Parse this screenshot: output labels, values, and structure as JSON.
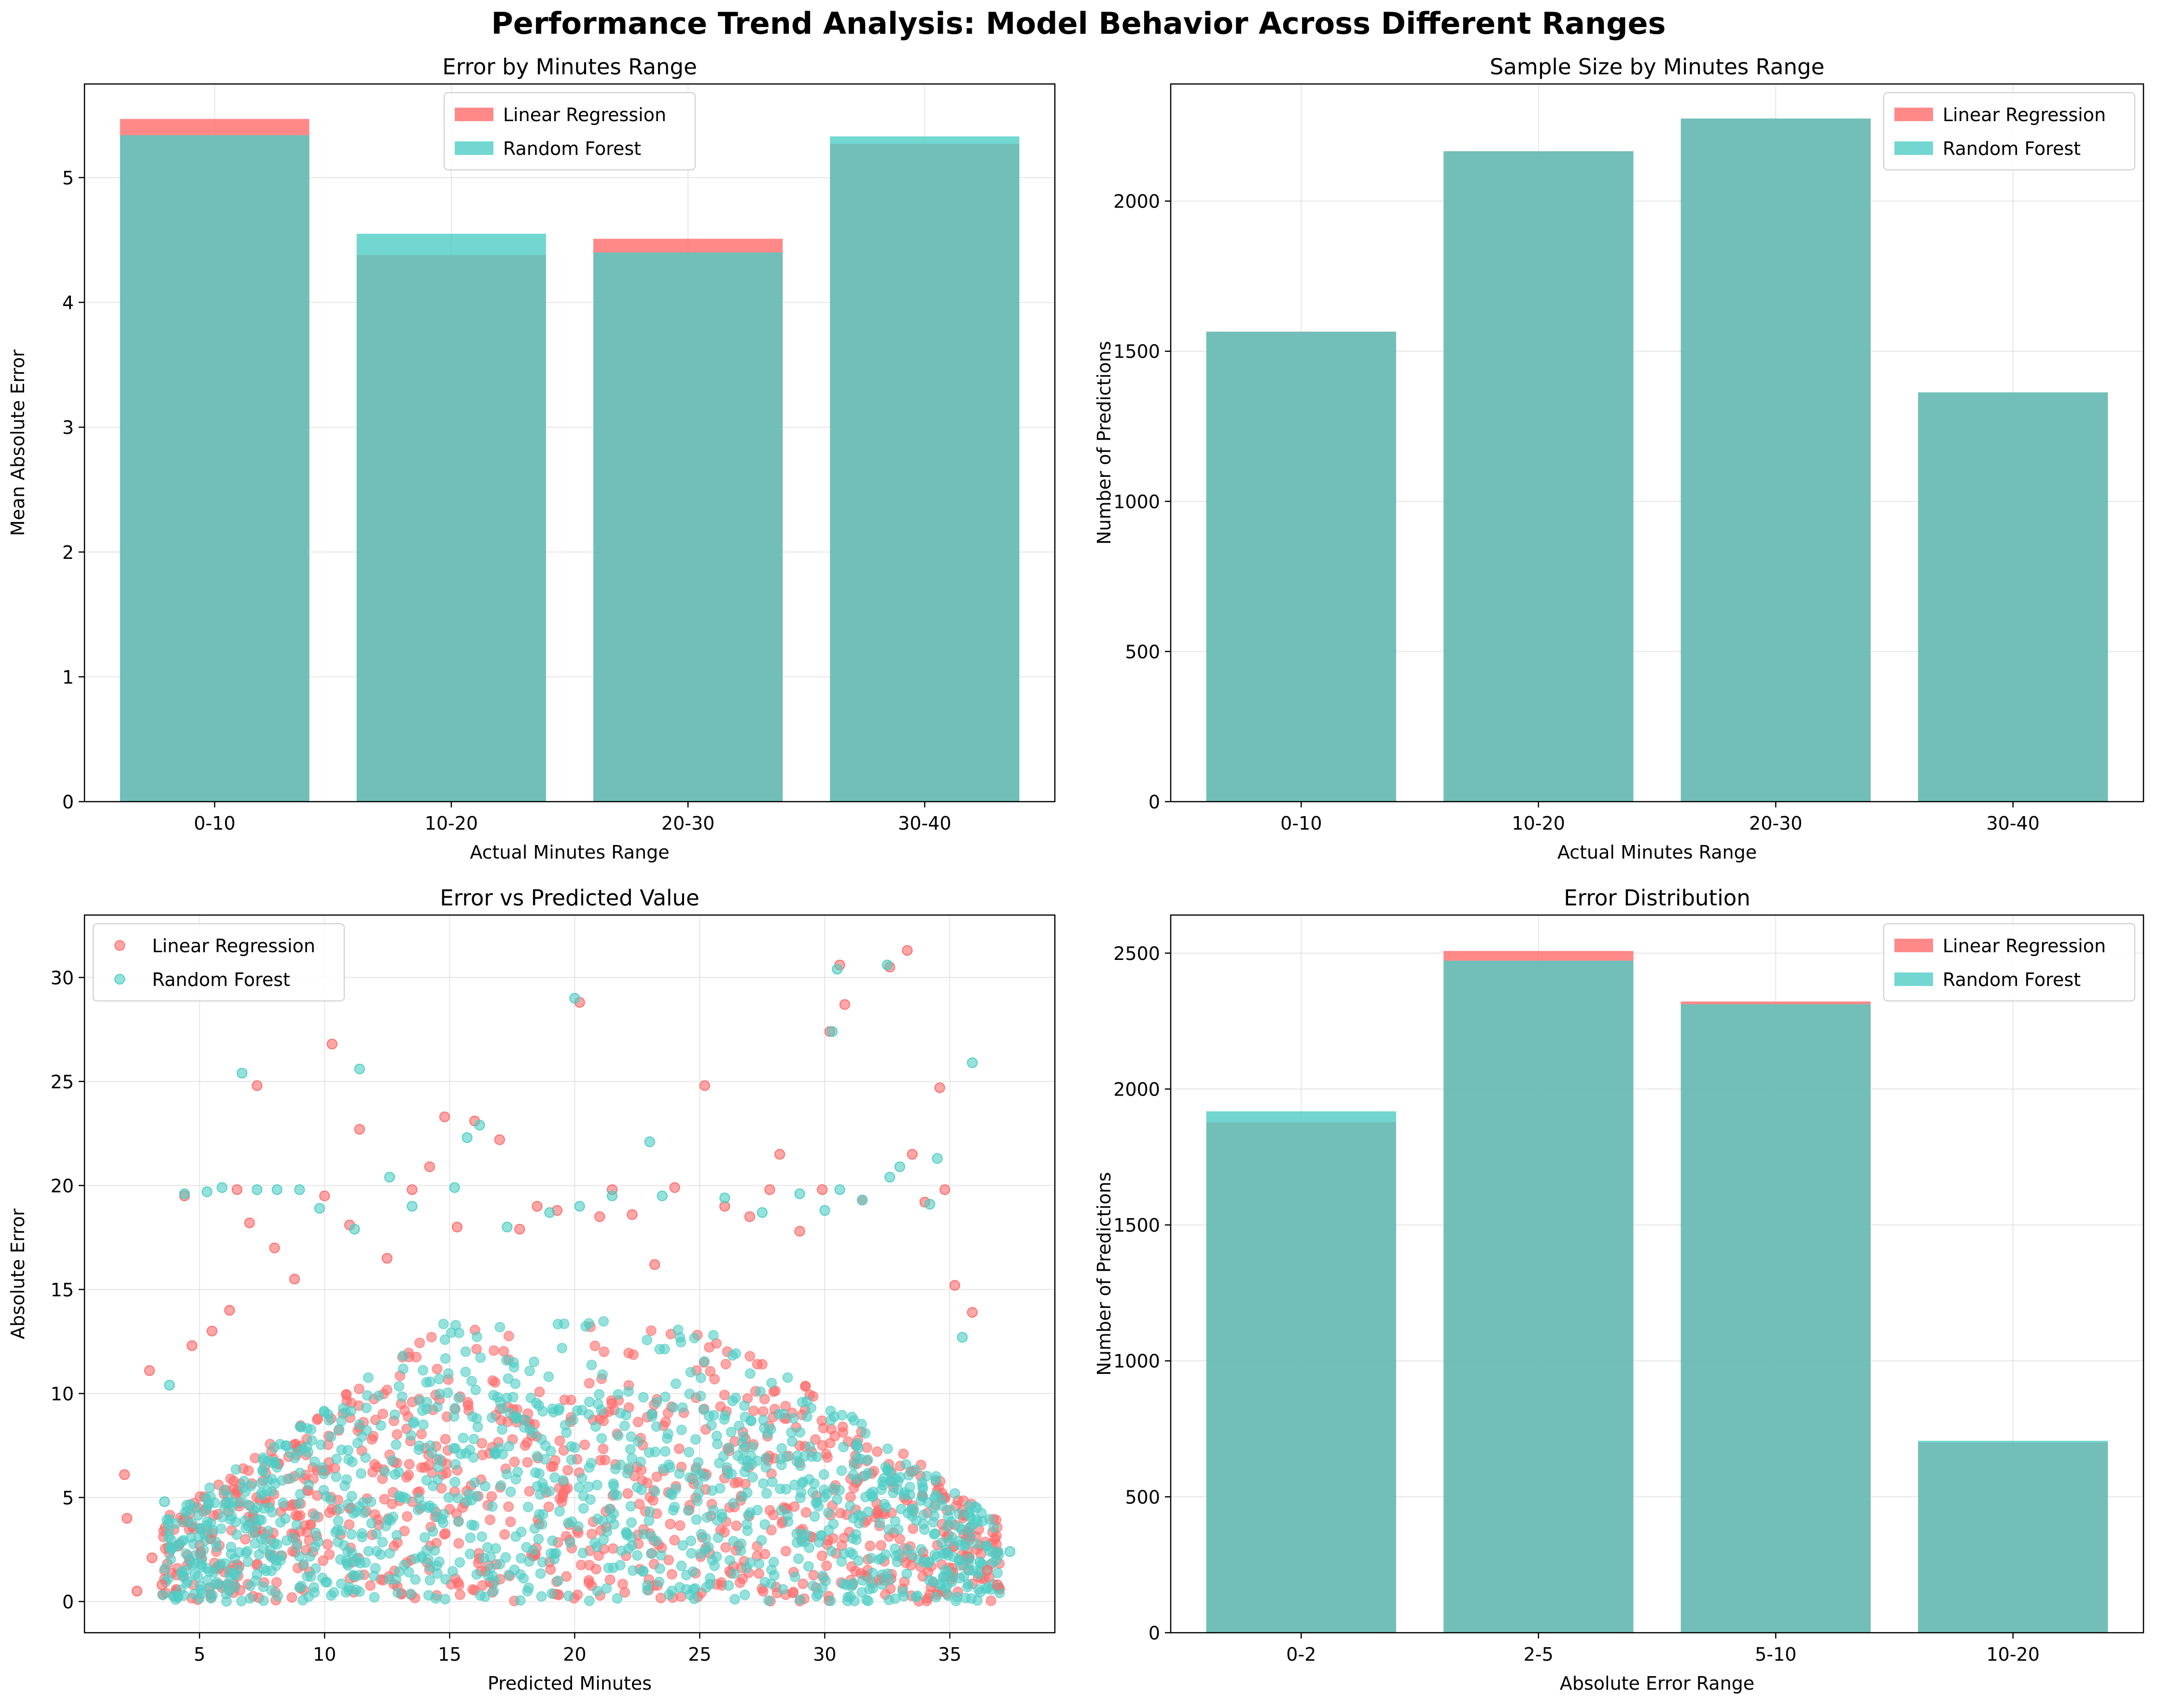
{
  "figure": {
    "title": "Performance Trend Analysis: Model Behavior Across Different Ranges"
  },
  "colors": {
    "linear_regression": "#ff6b6b",
    "random_forest": "#4ecdc4"
  },
  "chart_data": [
    {
      "id": "error-by-minutes",
      "type": "bar",
      "title": "Error by Minutes Range",
      "xlabel": "Actual Minutes Range",
      "ylabel": "Mean Absolute Error",
      "categories": [
        "0-10",
        "10-20",
        "20-30",
        "30-40"
      ],
      "series": [
        {
          "name": "Linear Regression",
          "values": [
            5.47,
            4.38,
            4.51,
            5.27
          ]
        },
        {
          "name": "Random Forest",
          "values": [
            5.34,
            4.55,
            4.4,
            5.33
          ]
        }
      ],
      "ylim": [
        0,
        5.75
      ],
      "yticks": [
        0,
        1,
        2,
        3,
        4,
        5
      ],
      "grid": true,
      "legend": "upper-center"
    },
    {
      "id": "sample-size",
      "type": "bar",
      "title": "Sample Size by Minutes Range",
      "xlabel": "Actual Minutes Range",
      "ylabel": "Number of Predictions",
      "categories": [
        "0-10",
        "10-20",
        "20-30",
        "30-40"
      ],
      "series": [
        {
          "name": "Linear Regression",
          "values": [
            1565,
            2166,
            2275,
            1363
          ]
        },
        {
          "name": "Random Forest",
          "values": [
            1565,
            2166,
            2275,
            1363
          ]
        }
      ],
      "ylim": [
        0,
        2390
      ],
      "yticks": [
        0,
        500,
        1000,
        1500,
        2000
      ],
      "grid": true,
      "legend": "upper-right"
    },
    {
      "id": "error-vs-predicted",
      "type": "scatter",
      "title": "Error vs Predicted Value",
      "xlabel": "Predicted Minutes",
      "ylabel": "Absolute Error",
      "xlim": [
        0.4,
        39.2
      ],
      "ylim": [
        -1.5,
        33
      ],
      "xticks": [
        5,
        10,
        15,
        20,
        25,
        30,
        35
      ],
      "yticks": [
        0,
        5,
        10,
        15,
        20,
        25,
        30
      ],
      "grid": true,
      "legend": "upper-left",
      "series": [
        {
          "name": "Linear Regression",
          "points": [
            [
              2.0,
              6.1
            ],
            [
              2.1,
              4.0
            ],
            [
              2.5,
              0.5
            ],
            [
              3.0,
              11.1
            ],
            [
              3.1,
              2.1
            ],
            [
              3.5,
              0.8
            ],
            [
              4.4,
              19.5
            ],
            [
              4.7,
              12.3
            ],
            [
              5.5,
              13.0
            ],
            [
              6.2,
              14.0
            ],
            [
              6.5,
              19.8
            ],
            [
              7.0,
              18.2
            ],
            [
              7.3,
              24.8
            ],
            [
              8.0,
              17.0
            ],
            [
              8.8,
              15.5
            ],
            [
              10.0,
              19.5
            ],
            [
              10.3,
              26.8
            ],
            [
              11.0,
              18.1
            ],
            [
              11.4,
              22.7
            ],
            [
              12.5,
              16.5
            ],
            [
              13.5,
              19.8
            ],
            [
              14.2,
              20.9
            ],
            [
              14.8,
              23.3
            ],
            [
              15.3,
              18.0
            ],
            [
              16.0,
              23.1
            ],
            [
              17.0,
              22.2
            ],
            [
              17.8,
              17.9
            ],
            [
              18.5,
              19.0
            ],
            [
              19.3,
              18.8
            ],
            [
              20.2,
              28.8
            ],
            [
              21.0,
              18.5
            ],
            [
              21.5,
              19.8
            ],
            [
              22.3,
              18.6
            ],
            [
              23.2,
              16.2
            ],
            [
              24.0,
              19.9
            ],
            [
              25.2,
              24.8
            ],
            [
              26.0,
              19.0
            ],
            [
              27.0,
              18.5
            ],
            [
              27.8,
              19.8
            ],
            [
              28.2,
              21.5
            ],
            [
              29.0,
              17.8
            ],
            [
              29.9,
              19.8
            ],
            [
              30.2,
              27.4
            ],
            [
              30.6,
              30.6
            ],
            [
              30.8,
              28.7
            ],
            [
              31.5,
              19.3
            ],
            [
              32.6,
              30.5
            ],
            [
              33.3,
              31.3
            ],
            [
              33.5,
              21.5
            ],
            [
              34.0,
              19.2
            ],
            [
              34.6,
              24.7
            ],
            [
              34.8,
              19.8
            ],
            [
              35.2,
              15.2
            ],
            [
              35.9,
              13.9
            ],
            [
              36.5,
              1.5
            ],
            [
              36.9,
              0.8
            ]
          ]
        },
        {
          "name": "Random Forest",
          "points": [
            [
              3.6,
              4.8
            ],
            [
              3.8,
              10.4
            ],
            [
              4.4,
              19.6
            ],
            [
              5.3,
              19.7
            ],
            [
              5.9,
              19.9
            ],
            [
              6.7,
              25.4
            ],
            [
              7.3,
              19.8
            ],
            [
              8.1,
              19.8
            ],
            [
              9.0,
              19.8
            ],
            [
              9.8,
              18.9
            ],
            [
              11.4,
              25.6
            ],
            [
              11.2,
              17.9
            ],
            [
              12.6,
              20.4
            ],
            [
              13.5,
              19.0
            ],
            [
              15.2,
              19.9
            ],
            [
              15.7,
              22.3
            ],
            [
              16.2,
              22.9
            ],
            [
              17.3,
              18.0
            ],
            [
              19.0,
              18.7
            ],
            [
              20.0,
              29.0
            ],
            [
              20.2,
              19.0
            ],
            [
              21.5,
              19.5
            ],
            [
              23.0,
              22.1
            ],
            [
              23.5,
              19.5
            ],
            [
              26.0,
              19.4
            ],
            [
              27.5,
              18.7
            ],
            [
              29.0,
              19.6
            ],
            [
              30.0,
              18.8
            ],
            [
              30.3,
              27.4
            ],
            [
              30.5,
              30.4
            ],
            [
              30.6,
              19.8
            ],
            [
              31.5,
              19.3
            ],
            [
              32.5,
              30.6
            ],
            [
              32.6,
              20.4
            ],
            [
              33.0,
              20.9
            ],
            [
              34.2,
              19.1
            ],
            [
              34.5,
              21.3
            ],
            [
              35.9,
              25.9
            ],
            [
              35.5,
              12.7
            ],
            [
              37.4,
              2.4
            ],
            [
              36.2,
              1.9
            ]
          ]
        }
      ]
    },
    {
      "id": "error-distribution",
      "type": "bar",
      "title": "Error Distribution",
      "xlabel": "Absolute Error Range",
      "ylabel": "Number of Predictions",
      "categories": [
        "0-2",
        "2-5",
        "5-10",
        "10-20"
      ],
      "series": [
        {
          "name": "Linear Regression",
          "values": [
            1878,
            2508,
            2322,
            700
          ]
        },
        {
          "name": "Random Forest",
          "values": [
            1918,
            2472,
            2312,
            706
          ]
        }
      ],
      "ylim": [
        0,
        2640
      ],
      "yticks": [
        0,
        500,
        1000,
        1500,
        2000,
        2500
      ],
      "grid": true,
      "legend": "upper-right"
    }
  ]
}
